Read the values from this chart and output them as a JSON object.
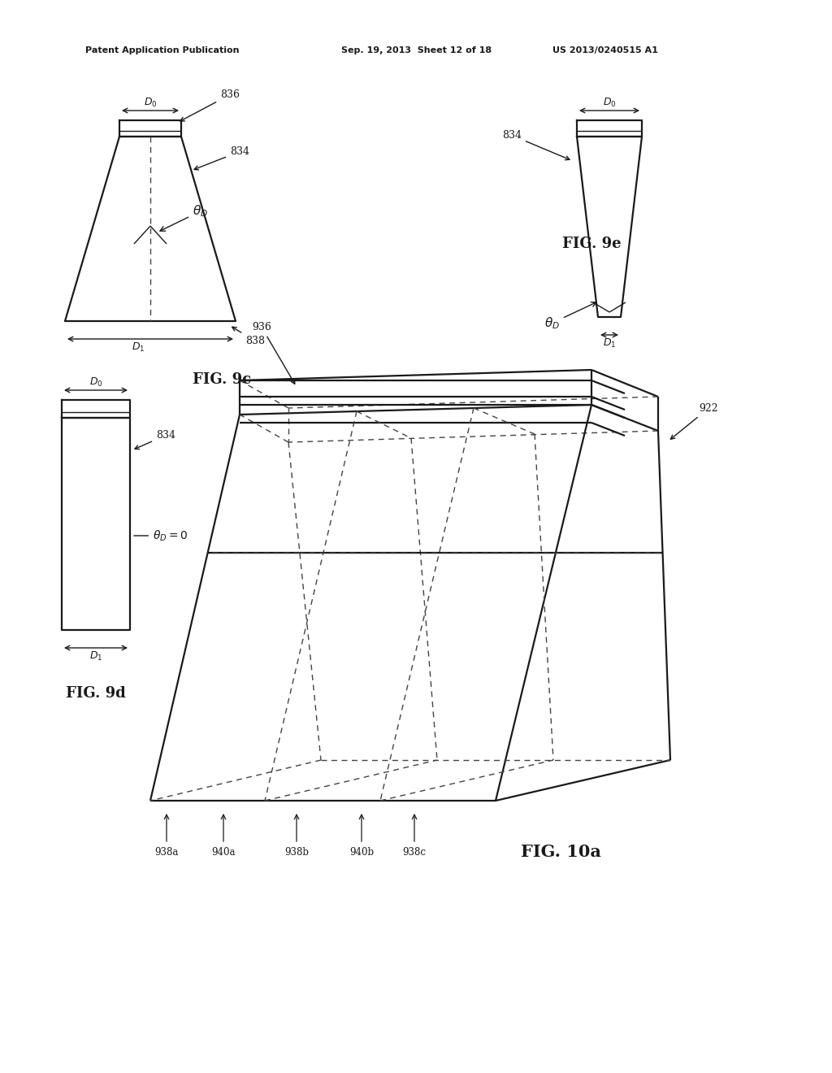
{
  "bg_color": "#ffffff",
  "header_left": "Patent Application Publication",
  "header_mid": "Sep. 19, 2013  Sheet 12 of 18",
  "header_right": "US 2013/0240515 A1",
  "fig9c_label": "FIG. 9c",
  "fig9d_label": "FIG. 9d",
  "fig9e_label": "FIG. 9e",
  "fig10a_label": "FIG. 10a",
  "color_main": "#1a1a1a",
  "color_dash": "#444444",
  "lw_main": 1.6,
  "lw_thin": 1.0,
  "fs_label": 9,
  "fs_fig": 13,
  "fs_header": 8
}
